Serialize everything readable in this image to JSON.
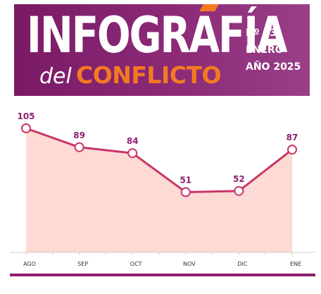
{
  "header": {
    "title_main": "INFOGRAFÍA",
    "title_del": "del",
    "title_conflicto": "CONFLICTO",
    "issue_number": "Nº 93",
    "issue_month": "ENERO",
    "issue_year": "AÑO 2025"
  },
  "colors": {
    "banner": "#8c2a78",
    "accent": "#f47a20",
    "line": "#c9356a",
    "area": "#fddad4",
    "label": "#8e1f6f",
    "rule": "#8e1f6f"
  },
  "chart_data": {
    "type": "area",
    "categories": [
      "AGO",
      "SEP",
      "OCT",
      "NOV",
      "DIC",
      "ENE"
    ],
    "values": [
      105,
      89,
      84,
      51,
      52,
      87
    ],
    "ylim": [
      0,
      120
    ],
    "grid": false,
    "legend": "none"
  }
}
